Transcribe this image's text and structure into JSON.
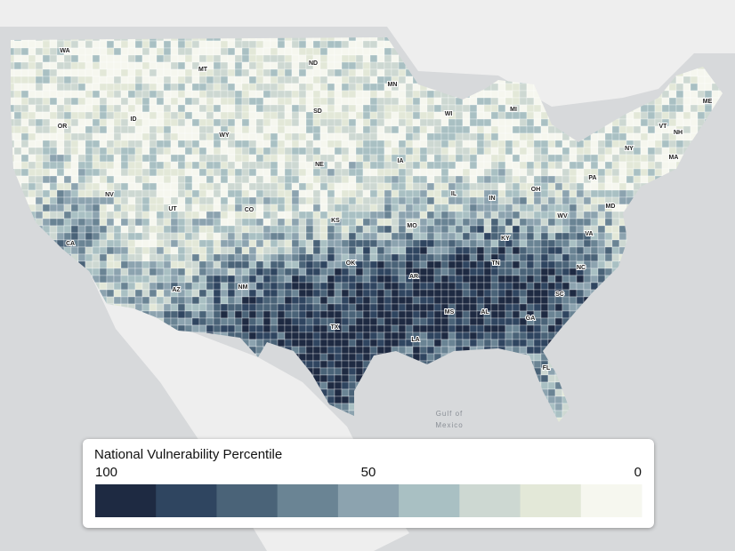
{
  "map": {
    "state_labels": [
      "WA",
      "MT",
      "ND",
      "MN",
      "OR",
      "ID",
      "WY",
      "SD",
      "WI",
      "MI",
      "ME",
      "VT",
      "NH",
      "NY",
      "MA",
      "IA",
      "NE",
      "PA",
      "NV",
      "UT",
      "CO",
      "IL",
      "IN",
      "OH",
      "KS",
      "MO",
      "KY",
      "WV",
      "MD",
      "VA",
      "CA",
      "OK",
      "TN",
      "NC",
      "AR",
      "SC",
      "AZ",
      "NM",
      "MS",
      "AL",
      "GA",
      "TX",
      "LA",
      "FL"
    ],
    "water_label": [
      "Gulf of",
      "Mexico"
    ]
  },
  "legend": {
    "title": "National Vulnerability Percentile",
    "range": [
      100,
      0
    ],
    "ticks": [
      100,
      50,
      0
    ],
    "colors": [
      "#1e2a42",
      "#2f4560",
      "#4a6378",
      "#6a8494",
      "#8ca3af",
      "#a9c0c3",
      "#cdd8d2",
      "#e3e8d8",
      "#f6f7ef"
    ]
  }
}
